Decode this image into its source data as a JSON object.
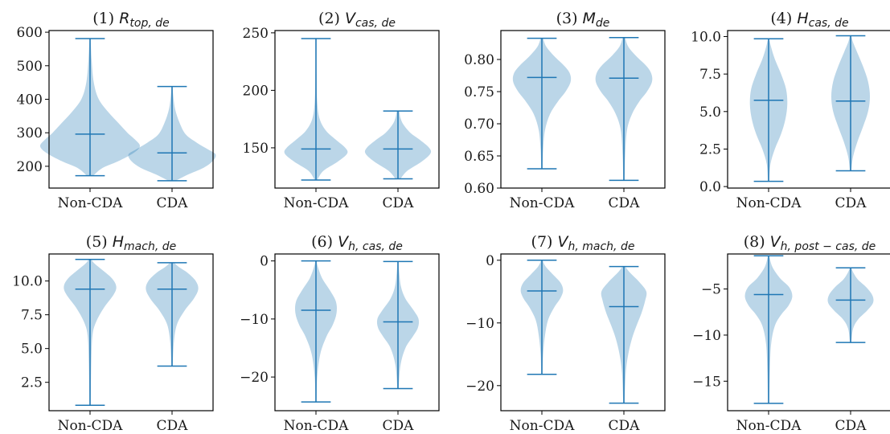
{
  "colors": {
    "violin_fill": "#1f77b4",
    "violin_fill_opacity": 0.3,
    "stat_line": "#1f77b4",
    "axis": "#000000",
    "text": "#1a1a1a"
  },
  "chart_data": [
    {
      "type": "violin",
      "title": {
        "prefix": "(1) ",
        "var": "R",
        "sub": "top, de"
      },
      "categories": [
        "Non-CDA",
        "CDA"
      ],
      "ylim": [
        135,
        605
      ],
      "yticks": [
        200,
        300,
        400,
        500,
        600
      ],
      "ytick_labels": [
        "200",
        "300",
        "400",
        "500",
        "600"
      ],
      "series": [
        {
          "category": "Non-CDA",
          "min": 172,
          "median": 296,
          "max": 581,
          "density": [
            [
              172,
              0.05
            ],
            [
              195,
              0.2
            ],
            [
              215,
              0.45
            ],
            [
              240,
              0.7
            ],
            [
              260,
              0.8
            ],
            [
              280,
              0.72
            ],
            [
              300,
              0.6
            ],
            [
              330,
              0.45
            ],
            [
              360,
              0.3
            ],
            [
              400,
              0.14
            ],
            [
              450,
              0.06
            ],
            [
              520,
              0.025
            ],
            [
              581,
              0.01
            ]
          ]
        },
        {
          "category": "CDA",
          "min": 157,
          "median": 240,
          "max": 438,
          "density": [
            [
              157,
              0.06
            ],
            [
              175,
              0.25
            ],
            [
              195,
              0.5
            ],
            [
              215,
              0.65
            ],
            [
              235,
              0.7
            ],
            [
              250,
              0.58
            ],
            [
              270,
              0.4
            ],
            [
              295,
              0.22
            ],
            [
              330,
              0.12
            ],
            [
              370,
              0.05
            ],
            [
              410,
              0.02
            ],
            [
              438,
              0.01
            ]
          ]
        }
      ]
    },
    {
      "type": "violin",
      "title": {
        "prefix": "(2) ",
        "var": "V",
        "sub": "cas, de"
      },
      "categories": [
        "Non-CDA",
        "CDA"
      ],
      "ylim": [
        115,
        252
      ],
      "yticks": [
        150,
        200,
        250
      ],
      "ytick_labels": [
        "150",
        "200",
        "250"
      ],
      "series": [
        {
          "category": "Non-CDA",
          "min": 122,
          "median": 149,
          "max": 245,
          "density": [
            [
              122,
              0.02
            ],
            [
              130,
              0.12
            ],
            [
              138,
              0.35
            ],
            [
              145,
              0.5
            ],
            [
              150,
              0.47
            ],
            [
              157,
              0.32
            ],
            [
              165,
              0.16
            ],
            [
              175,
              0.06
            ],
            [
              190,
              0.02
            ],
            [
              215,
              0.01
            ],
            [
              245,
              0.01
            ]
          ]
        },
        {
          "category": "CDA",
          "min": 123,
          "median": 149,
          "max": 182,
          "density": [
            [
              123,
              0.04
            ],
            [
              130,
              0.15
            ],
            [
              138,
              0.38
            ],
            [
              145,
              0.52
            ],
            [
              150,
              0.5
            ],
            [
              157,
              0.35
            ],
            [
              163,
              0.2
            ],
            [
              170,
              0.09
            ],
            [
              176,
              0.04
            ],
            [
              182,
              0.02
            ]
          ]
        }
      ]
    },
    {
      "type": "violin",
      "title": {
        "prefix": "(3) ",
        "var": "M",
        "sub": "de"
      },
      "categories": [
        "Non-CDA",
        "CDA"
      ],
      "ylim": [
        0.6,
        0.845
      ],
      "yticks": [
        0.6,
        0.65,
        0.7,
        0.75,
        0.8
      ],
      "ytick_labels": [
        "0.60",
        "0.65",
        "0.70",
        "0.75",
        "0.80"
      ],
      "series": [
        {
          "category": "Non-CDA",
          "min": 0.63,
          "median": 0.772,
          "max": 0.833,
          "density": [
            [
              0.63,
              0.01
            ],
            [
              0.66,
              0.02
            ],
            [
              0.69,
              0.05
            ],
            [
              0.715,
              0.13
            ],
            [
              0.735,
              0.26
            ],
            [
              0.75,
              0.38
            ],
            [
              0.765,
              0.46
            ],
            [
              0.778,
              0.45
            ],
            [
              0.79,
              0.36
            ],
            [
              0.805,
              0.2
            ],
            [
              0.82,
              0.07
            ],
            [
              0.833,
              0.02
            ]
          ]
        },
        {
          "category": "CDA",
          "min": 0.612,
          "median": 0.771,
          "max": 0.834,
          "density": [
            [
              0.612,
              0.01
            ],
            [
              0.65,
              0.02
            ],
            [
              0.69,
              0.05
            ],
            [
              0.715,
              0.13
            ],
            [
              0.735,
              0.25
            ],
            [
              0.75,
              0.37
            ],
            [
              0.765,
              0.45
            ],
            [
              0.778,
              0.44
            ],
            [
              0.79,
              0.36
            ],
            [
              0.805,
              0.2
            ],
            [
              0.82,
              0.07
            ],
            [
              0.834,
              0.02
            ]
          ]
        }
      ]
    },
    {
      "type": "violin",
      "title": {
        "prefix": "(4) ",
        "var": "H",
        "sub": "cas, de"
      },
      "categories": [
        "Non-CDA",
        "CDA"
      ],
      "ylim": [
        -0.1,
        10.4
      ],
      "yticks": [
        0,
        2.5,
        5,
        7.5,
        10
      ],
      "ytick_labels": [
        "0.0",
        "2.5",
        "5.0",
        "7.5",
        "10.0"
      ],
      "series": [
        {
          "category": "Non-CDA",
          "min": 0.35,
          "median": 5.75,
          "max": 9.85,
          "density": [
            [
              0.35,
              0.01
            ],
            [
              1.5,
              0.03
            ],
            [
              2.5,
              0.1
            ],
            [
              3.5,
              0.2
            ],
            [
              4.5,
              0.27
            ],
            [
              5.5,
              0.3
            ],
            [
              6.5,
              0.28
            ],
            [
              7.5,
              0.2
            ],
            [
              8.5,
              0.1
            ],
            [
              9.3,
              0.04
            ],
            [
              9.85,
              0.01
            ]
          ]
        },
        {
          "category": "CDA",
          "min": 1.05,
          "median": 5.7,
          "max": 10.05,
          "density": [
            [
              1.05,
              0.01
            ],
            [
              2,
              0.04
            ],
            [
              3,
              0.11
            ],
            [
              4,
              0.2
            ],
            [
              5,
              0.28
            ],
            [
              6,
              0.31
            ],
            [
              7,
              0.28
            ],
            [
              8,
              0.2
            ],
            [
              9,
              0.1
            ],
            [
              9.6,
              0.04
            ],
            [
              10.05,
              0.01
            ]
          ]
        }
      ]
    },
    {
      "type": "violin",
      "title": {
        "prefix": "(5) ",
        "var": "H",
        "sub": "mach, de"
      },
      "categories": [
        "Non-CDA",
        "CDA"
      ],
      "ylim": [
        0.4,
        12.0
      ],
      "yticks": [
        2.5,
        5,
        7.5,
        10
      ],
      "ytick_labels": [
        "2.5",
        "5.0",
        "7.5",
        "10.0"
      ],
      "series": [
        {
          "category": "Non-CDA",
          "min": 0.8,
          "median": 9.4,
          "max": 11.6,
          "density": [
            [
              0.8,
              0.01
            ],
            [
              4,
              0.02
            ],
            [
              6,
              0.04
            ],
            [
              7,
              0.1
            ],
            [
              8,
              0.22
            ],
            [
              9,
              0.38
            ],
            [
              9.6,
              0.42
            ],
            [
              10.2,
              0.35
            ],
            [
              10.8,
              0.2
            ],
            [
              11.3,
              0.07
            ],
            [
              11.6,
              0.02
            ]
          ]
        },
        {
          "category": "CDA",
          "min": 3.7,
          "median": 9.4,
          "max": 11.35,
          "density": [
            [
              3.7,
              0.01
            ],
            [
              5.5,
              0.03
            ],
            [
              6.8,
              0.08
            ],
            [
              7.8,
              0.2
            ],
            [
              8.7,
              0.35
            ],
            [
              9.4,
              0.42
            ],
            [
              10,
              0.38
            ],
            [
              10.6,
              0.25
            ],
            [
              11,
              0.12
            ],
            [
              11.35,
              0.03
            ]
          ]
        }
      ]
    },
    {
      "type": "violin",
      "title": {
        "prefix": "(6) ",
        "var": "V",
        "sub": "h, cas, de"
      },
      "categories": [
        "Non-CDA",
        "CDA"
      ],
      "ylim": [
        -25.8,
        1.2
      ],
      "yticks": [
        -20,
        -10,
        0
      ],
      "ytick_labels": [
        "−20",
        "−10",
        "0"
      ],
      "series": [
        {
          "category": "Non-CDA",
          "min": -24.3,
          "median": -8.5,
          "max": 0.0,
          "density": [
            [
              -24.3,
              0.01
            ],
            [
              -20,
              0.02
            ],
            [
              -16,
              0.07
            ],
            [
              -13,
              0.17
            ],
            [
              -11,
              0.27
            ],
            [
              -9,
              0.33
            ],
            [
              -7,
              0.32
            ],
            [
              -5,
              0.22
            ],
            [
              -3,
              0.1
            ],
            [
              -1,
              0.03
            ],
            [
              0,
              0.01
            ]
          ]
        },
        {
          "category": "CDA",
          "min": -22.0,
          "median": -10.5,
          "max": -0.1,
          "density": [
            [
              -22,
              0.01
            ],
            [
              -18,
              0.04
            ],
            [
              -15,
              0.12
            ],
            [
              -13,
              0.24
            ],
            [
              -11.5,
              0.32
            ],
            [
              -10,
              0.33
            ],
            [
              -8.5,
              0.25
            ],
            [
              -6.5,
              0.12
            ],
            [
              -4.5,
              0.05
            ],
            [
              -2,
              0.02
            ],
            [
              -0.1,
              0.01
            ]
          ]
        }
      ]
    },
    {
      "type": "violin",
      "title": {
        "prefix": "(7) ",
        "var": "V",
        "sub": "h, mach, de"
      },
      "categories": [
        "Non-CDA",
        "CDA"
      ],
      "ylim": [
        -24,
        1
      ],
      "yticks": [
        -20,
        -10,
        0
      ],
      "ytick_labels": [
        "−20",
        "−10",
        "0"
      ],
      "series": [
        {
          "category": "Non-CDA",
          "min": -18.2,
          "median": -4.9,
          "max": 0.0,
          "density": [
            [
              -18.2,
              0.01
            ],
            [
              -15,
              0.02
            ],
            [
              -12,
              0.05
            ],
            [
              -9.5,
              0.1
            ],
            [
              -7.5,
              0.2
            ],
            [
              -6,
              0.3
            ],
            [
              -4.8,
              0.34
            ],
            [
              -3.6,
              0.3
            ],
            [
              -2.3,
              0.18
            ],
            [
              -1,
              0.06
            ],
            [
              0,
              0.01
            ]
          ]
        },
        {
          "category": "CDA",
          "min": -22.8,
          "median": -7.4,
          "max": -1.0,
          "density": [
            [
              -22.8,
              0.01
            ],
            [
              -18,
              0.03
            ],
            [
              -15,
              0.07
            ],
            [
              -12.5,
              0.13
            ],
            [
              -10.5,
              0.2
            ],
            [
              -8.5,
              0.28
            ],
            [
              -6.5,
              0.34
            ],
            [
              -5,
              0.36
            ],
            [
              -3.5,
              0.25
            ],
            [
              -2,
              0.1
            ],
            [
              -1,
              0.02
            ]
          ]
        }
      ]
    },
    {
      "type": "violin",
      "title": {
        "prefix": "(8) ",
        "var": "V",
        "sub": "h, post − cas, de"
      },
      "categories": [
        "Non-CDA",
        "CDA"
      ],
      "ylim": [
        -18.2,
        -1.2
      ],
      "yticks": [
        -15,
        -10,
        -5
      ],
      "ytick_labels": [
        "−15",
        "−10",
        "−5"
      ],
      "series": [
        {
          "category": "Non-CDA",
          "min": -17.4,
          "median": -5.6,
          "max": -1.4,
          "density": [
            [
              -17.4,
              0.01
            ],
            [
              -14,
              0.02
            ],
            [
              -11,
              0.04
            ],
            [
              -9,
              0.1
            ],
            [
              -7.8,
              0.2
            ],
            [
              -6.8,
              0.32
            ],
            [
              -5.8,
              0.38
            ],
            [
              -4.8,
              0.33
            ],
            [
              -3.8,
              0.18
            ],
            [
              -2.6,
              0.06
            ],
            [
              -1.4,
              0.01
            ]
          ]
        },
        {
          "category": "CDA",
          "min": -10.8,
          "median": -6.2,
          "max": -2.7,
          "density": [
            [
              -10.8,
              0.01
            ],
            [
              -9.3,
              0.04
            ],
            [
              -8.3,
              0.12
            ],
            [
              -7.3,
              0.27
            ],
            [
              -6.5,
              0.36
            ],
            [
              -5.7,
              0.35
            ],
            [
              -4.8,
              0.25
            ],
            [
              -4,
              0.12
            ],
            [
              -3.3,
              0.05
            ],
            [
              -2.7,
              0.01
            ]
          ]
        }
      ]
    }
  ]
}
